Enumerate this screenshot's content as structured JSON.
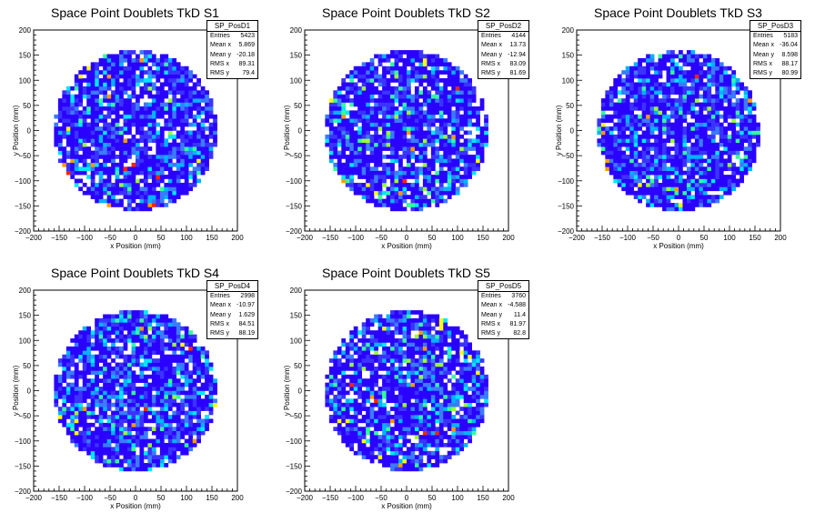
{
  "colors": {
    "palette": [
      "#2a00ff",
      "#3b33ff",
      "#3a7bff",
      "#00b3ff",
      "#00e6ff",
      "#33ff99",
      "#99ff33",
      "#ffff00",
      "#ff9900",
      "#ff2200"
    ],
    "axis": "#000000",
    "background": "#ffffff"
  },
  "chart_data": [
    {
      "type": "heatmap",
      "title": "Space Point Doublets TkD S1",
      "xlabel": "x Position (mm)",
      "ylabel": "y Position (mm)",
      "xlim": [
        -200,
        200
      ],
      "ylim": [
        -200,
        200
      ],
      "xticks": [
        "−200",
        "−150",
        "−100",
        "−50",
        "0",
        "50",
        "100",
        "150",
        "200"
      ],
      "yticks": [
        "200",
        "150",
        "100",
        "50",
        "0",
        "−50",
        "−100",
        "−150",
        "−200"
      ],
      "fill_radius": 160,
      "stats": {
        "name": "SP_PosD1",
        "rows": [
          {
            "label": "Entries",
            "value": "5423"
          },
          {
            "label": "Mean x",
            "value": "5.869"
          },
          {
            "label": "Mean y",
            "value": "-20.18"
          },
          {
            "label": "RMS x",
            "value": "89.31"
          },
          {
            "label": "RMS y",
            "value": "79.4"
          }
        ]
      }
    },
    {
      "type": "heatmap",
      "title": "Space Point Doublets TkD S2",
      "xlabel": "x Position (mm)",
      "ylabel": "y Position (mm)",
      "xlim": [
        -200,
        200
      ],
      "ylim": [
        -200,
        200
      ],
      "xticks": [
        "−200",
        "−150",
        "−100",
        "−50",
        "0",
        "50",
        "100",
        "150",
        "200"
      ],
      "yticks": [
        "200",
        "150",
        "100",
        "50",
        "0",
        "−50",
        "−100",
        "−150",
        "−200"
      ],
      "fill_radius": 160,
      "stats": {
        "name": "SP_PosD2",
        "rows": [
          {
            "label": "Entries",
            "value": "4144"
          },
          {
            "label": "Mean x",
            "value": "13.73"
          },
          {
            "label": "Mean y",
            "value": "-12.94"
          },
          {
            "label": "RMS x",
            "value": "83.09"
          },
          {
            "label": "RMS y",
            "value": "81.69"
          }
        ]
      }
    },
    {
      "type": "heatmap",
      "title": "Space Point Doublets TkD S3",
      "xlabel": "x Position (mm)",
      "ylabel": "y Position (mm)",
      "xlim": [
        -200,
        200
      ],
      "ylim": [
        -200,
        200
      ],
      "xticks": [
        "−200",
        "−150",
        "−100",
        "−50",
        "0",
        "50",
        "100",
        "150",
        "200"
      ],
      "yticks": [
        "200",
        "150",
        "100",
        "50",
        "0",
        "−50",
        "−100",
        "−150",
        "−200"
      ],
      "fill_radius": 160,
      "stats": {
        "name": "SP_PosD3",
        "rows": [
          {
            "label": "Entries",
            "value": "5183"
          },
          {
            "label": "Mean x",
            "value": "-36.04"
          },
          {
            "label": "Mean y",
            "value": "8.598"
          },
          {
            "label": "RMS x",
            "value": "88.17"
          },
          {
            "label": "RMS y",
            "value": "80.99"
          }
        ]
      }
    },
    {
      "type": "heatmap",
      "title": "Space Point Doublets TkD S4",
      "xlabel": "x Position (mm)",
      "ylabel": "y Position (mm)",
      "xlim": [
        -200,
        200
      ],
      "ylim": [
        -200,
        200
      ],
      "xticks": [
        "−200",
        "−150",
        "−100",
        "−50",
        "0",
        "50",
        "100",
        "150",
        "200"
      ],
      "yticks": [
        "200",
        "150",
        "100",
        "50",
        "0",
        "−50",
        "−100",
        "−150",
        "−200"
      ],
      "fill_radius": 160,
      "stats": {
        "name": "SP_PosD4",
        "rows": [
          {
            "label": "Entries",
            "value": "2998"
          },
          {
            "label": "Mean x",
            "value": "-10.97"
          },
          {
            "label": "Mean y",
            "value": "1.629"
          },
          {
            "label": "RMS x",
            "value": "84.51"
          },
          {
            "label": "RMS y",
            "value": "88.19"
          }
        ]
      }
    },
    {
      "type": "heatmap",
      "title": "Space Point Doublets TkD S5",
      "xlabel": "x Position (mm)",
      "ylabel": "y Position (mm)",
      "xlim": [
        -200,
        200
      ],
      "ylim": [
        -200,
        200
      ],
      "xticks": [
        "−200",
        "−150",
        "−100",
        "−50",
        "0",
        "50",
        "100",
        "150",
        "200"
      ],
      "yticks": [
        "200",
        "150",
        "100",
        "50",
        "0",
        "−50",
        "−100",
        "−150",
        "−200"
      ],
      "fill_radius": 160,
      "stats": {
        "name": "SP_PosD5",
        "rows": [
          {
            "label": "Entries",
            "value": "3760"
          },
          {
            "label": "Mean x",
            "value": "-4.588"
          },
          {
            "label": "Mean y",
            "value": "11.4"
          },
          {
            "label": "RMS x",
            "value": "81.97"
          },
          {
            "label": "RMS y",
            "value": "82.8"
          }
        ]
      }
    }
  ]
}
